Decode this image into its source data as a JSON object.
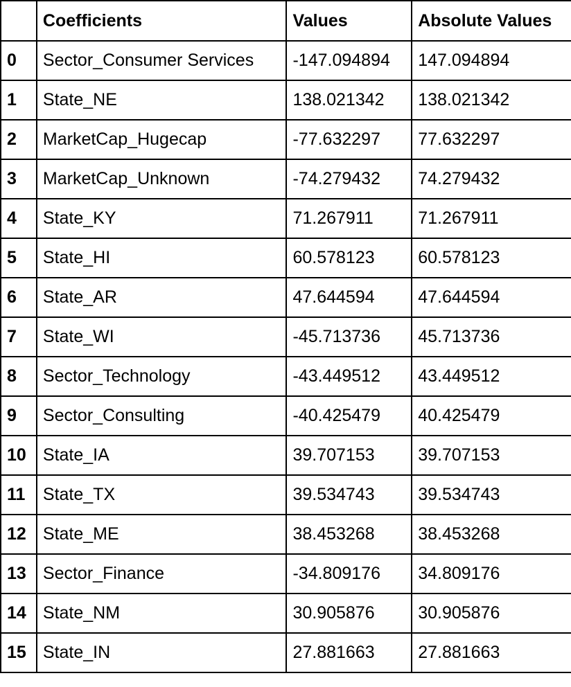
{
  "table": {
    "headers": [
      "",
      "Coefficients",
      "Values",
      "Absolute Values"
    ],
    "rows": [
      {
        "index": "0",
        "coefficient": "Sector_Consumer Services",
        "value": "-147.094894",
        "abs_value": "147.094894"
      },
      {
        "index": "1",
        "coefficient": "State_NE",
        "value": "138.021342",
        "abs_value": "138.021342"
      },
      {
        "index": "2",
        "coefficient": "MarketCap_Hugecap",
        "value": "-77.632297",
        "abs_value": "77.632297"
      },
      {
        "index": "3",
        "coefficient": "MarketCap_Unknown",
        "value": "-74.279432",
        "abs_value": "74.279432"
      },
      {
        "index": "4",
        "coefficient": "State_KY",
        "value": "71.267911",
        "abs_value": "71.267911"
      },
      {
        "index": "5",
        "coefficient": "State_HI",
        "value": "60.578123",
        "abs_value": "60.578123"
      },
      {
        "index": "6",
        "coefficient": "State_AR",
        "value": "47.644594",
        "abs_value": "47.644594"
      },
      {
        "index": "7",
        "coefficient": "State_WI",
        "value": "-45.713736",
        "abs_value": "45.713736"
      },
      {
        "index": "8",
        "coefficient": "Sector_Technology",
        "value": "-43.449512",
        "abs_value": "43.449512"
      },
      {
        "index": "9",
        "coefficient": "Sector_Consulting",
        "value": "-40.425479",
        "abs_value": "40.425479"
      },
      {
        "index": "10",
        "coefficient": "State_IA",
        "value": "39.707153",
        "abs_value": "39.707153"
      },
      {
        "index": "11",
        "coefficient": "State_TX",
        "value": "39.534743",
        "abs_value": "39.534743"
      },
      {
        "index": "12",
        "coefficient": "State_ME",
        "value": "38.453268",
        "abs_value": "38.453268"
      },
      {
        "index": "13",
        "coefficient": "Sector_Finance",
        "value": "-34.809176",
        "abs_value": "34.809176"
      },
      {
        "index": "14",
        "coefficient": "State_NM",
        "value": "30.905876",
        "abs_value": "30.905876"
      },
      {
        "index": "15",
        "coefficient": "State_IN",
        "value": "27.881663",
        "abs_value": "27.881663"
      }
    ]
  }
}
